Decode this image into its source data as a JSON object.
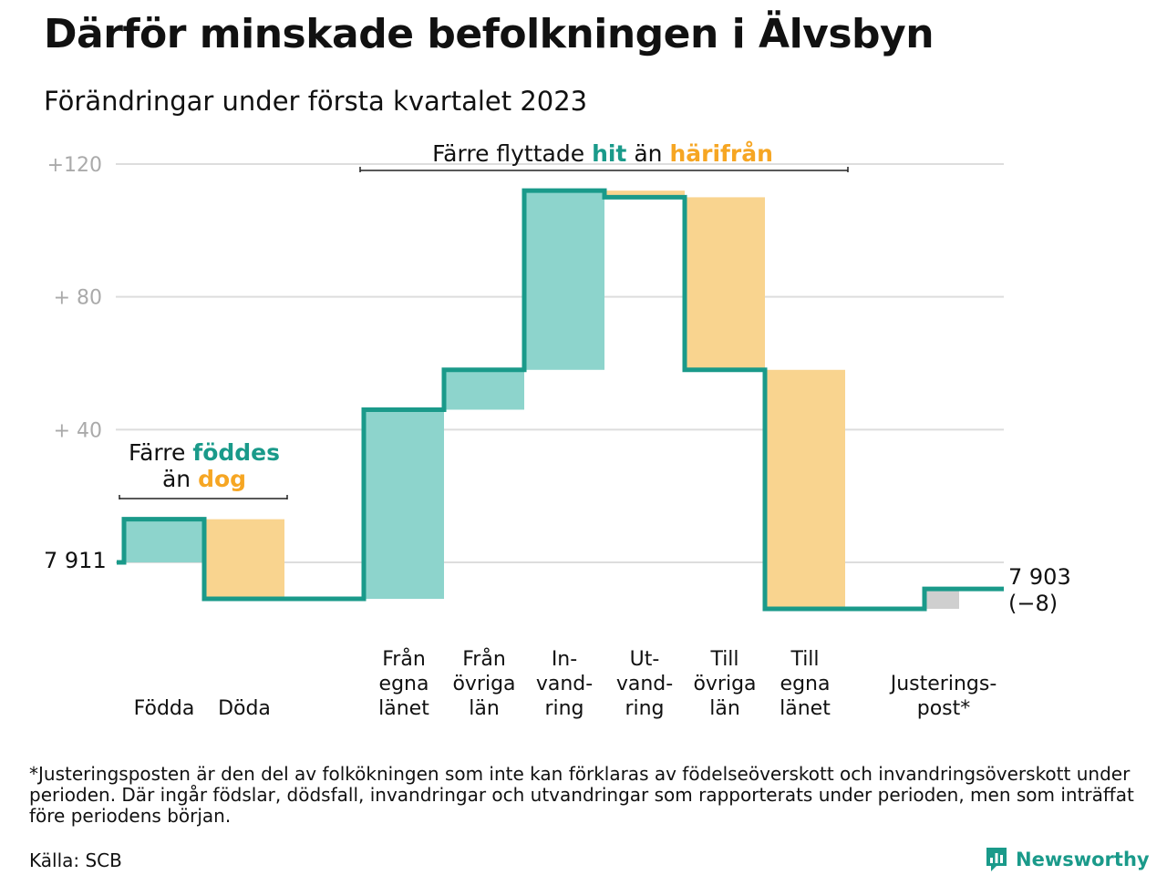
{
  "title": "Därför minskade befolkningen i Älvsbyn",
  "subtitle": "Förändringar under första kvartalet 2023",
  "colors": {
    "teal": "#1a9a8a",
    "teal_fill": "#8dd4cc",
    "orange": "#f6a623",
    "orange_fill": "#f9d48f",
    "gray": "#cfcfcf",
    "grid": "#dddddd",
    "axis_text": "#aaaaaa"
  },
  "annotations": {
    "births": {
      "line1_a": "Färre ",
      "line1_b": "föddes",
      "line2_a": "än ",
      "line2_b": "dog"
    },
    "moves": {
      "a": "Färre flyttade ",
      "b": "hit",
      "c": " än ",
      "d": "härifrån"
    }
  },
  "start_label": "7 911",
  "end_label_1": "7 903",
  "end_label_2": "(−8)",
  "footnote": "*Justeringsposten är den del av folkökningen som inte kan förklaras av födelseöverskott och invandringsöverskott under perioden. Där ingår födslar, dödsfall, invandringar och utvandringar som rapporterats under perioden, men som inträffat före periodens början.",
  "source": "Källa: SCB",
  "logo": {
    "name": "Newsworthy",
    "icon": "bar-chart-speech-icon"
  },
  "chart_data": {
    "type": "waterfall",
    "title": "Därför minskade befolkningen i Älvsbyn",
    "subtitle": "Förändringar under första kvartalet 2023",
    "start_value": 7911,
    "end_value": 7903,
    "net_change": -8,
    "y_tick_labels": [
      "+120",
      "+ 80",
      "+ 40"
    ],
    "y_ticks": [
      120,
      80,
      40
    ],
    "ylim": [
      -17,
      124
    ],
    "grid": true,
    "categories": [
      {
        "label": [
          "Födda"
        ],
        "kind": "gain",
        "from": 0,
        "to": 13
      },
      {
        "label": [
          "Döda"
        ],
        "kind": "loss",
        "from": 13,
        "to": -11
      },
      {
        "label": [
          "Från",
          "egna",
          "länet"
        ],
        "kind": "gain",
        "from": -11,
        "to": 46
      },
      {
        "label": [
          "Från",
          "övriga",
          "län"
        ],
        "kind": "gain",
        "from": 46,
        "to": 58
      },
      {
        "label": [
          "In-",
          "vand-",
          "ring"
        ],
        "kind": "gain",
        "from": 58,
        "to": 112
      },
      {
        "label": [
          "Ut-",
          "vand-",
          "ring"
        ],
        "kind": "loss",
        "from": 112,
        "to": 110
      },
      {
        "label": [
          "Till",
          "övriga",
          "län"
        ],
        "kind": "loss",
        "from": 110,
        "to": 58
      },
      {
        "label": [
          "Till",
          "egna",
          "länet"
        ],
        "kind": "loss",
        "from": 58,
        "to": -14
      },
      {
        "label": [
          "Justerings-",
          "post*"
        ],
        "kind": "adjust",
        "from": -14,
        "to": -8
      }
    ]
  }
}
